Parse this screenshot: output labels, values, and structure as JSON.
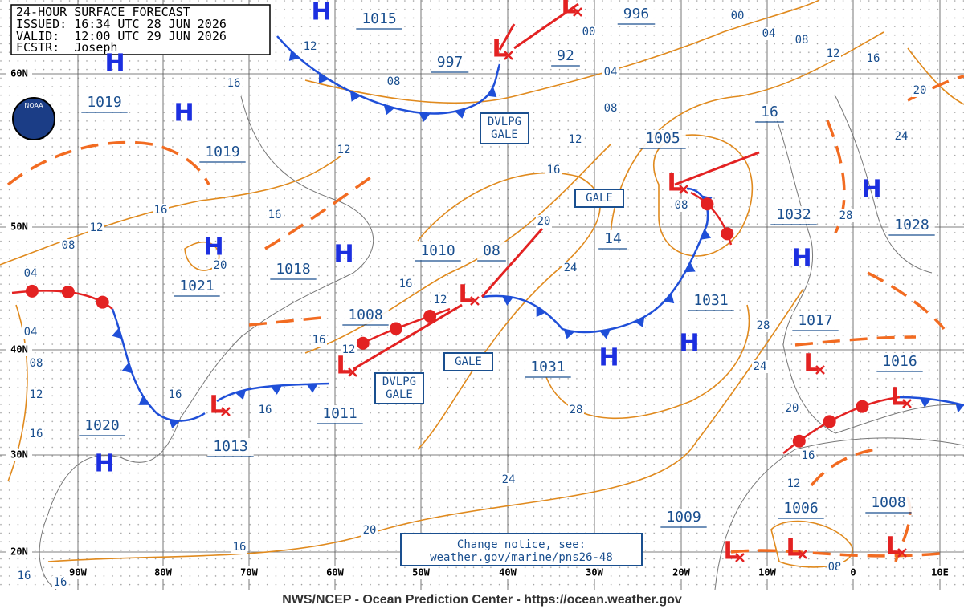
{
  "header": {
    "title": "24-HOUR SURFACE FORECAST",
    "issued": "ISSUED: 16:34 UTC 28 JUN 2026",
    "valid": "VALID:  12:00 UTC 29 JUN 2026",
    "forecaster": "FCSTR:  Joseph"
  },
  "logo": "NOAA",
  "pressure_labels": [
    "1015",
    "996",
    "997",
    "92",
    "1019",
    "1019",
    "1005",
    "16",
    "1032",
    "1028",
    "14",
    "1010",
    "08",
    "1018",
    "1021",
    "1008",
    "1031",
    "1031",
    "1017",
    "1016",
    "1011",
    "1013",
    "1020",
    "1009",
    "1006",
    "1008"
  ],
  "isobar_labels": [
    "00",
    "00",
    "04",
    "08",
    "12",
    "16",
    "20",
    "24",
    "28",
    "04",
    "08",
    "12",
    "16",
    "20",
    "24",
    "28",
    "24",
    "20",
    "16",
    "16",
    "16",
    "16",
    "12",
    "08",
    "04",
    "04",
    "08",
    "12",
    "16",
    "16",
    "12",
    "12",
    "08",
    "16",
    "20",
    "16",
    "16",
    "12",
    "12",
    "16",
    "16",
    "08",
    "24",
    "28",
    "20",
    "16",
    "12",
    "08"
  ],
  "highs": [
    "H",
    "H",
    "H",
    "H",
    "H",
    "H",
    "H",
    "H",
    "H",
    "H"
  ],
  "lows": [
    "L",
    "L",
    "L",
    "L",
    "L",
    "L",
    "L",
    "L",
    "L",
    "L",
    "L"
  ],
  "warnings": [
    {
      "lines": [
        "DVLPG",
        "GALE"
      ]
    },
    {
      "lines": [
        "GALE"
      ]
    },
    {
      "lines": [
        "GALE"
      ]
    },
    {
      "lines": [
        "DVLPG",
        "GALE"
      ]
    }
  ],
  "latitudes": [
    "60N",
    "50N",
    "40N",
    "30N",
    "20N"
  ],
  "longitudes": [
    "90W",
    "80W",
    "70W",
    "60W",
    "50W",
    "40W",
    "30W",
    "20W",
    "10W",
    "0",
    "10E"
  ],
  "notice": [
    "Change notice, see:",
    "weather.gov/marine/pns26-48"
  ],
  "footer": "NWS/NCEP - Ocean Prediction Center - https://ocean.weather.gov"
}
